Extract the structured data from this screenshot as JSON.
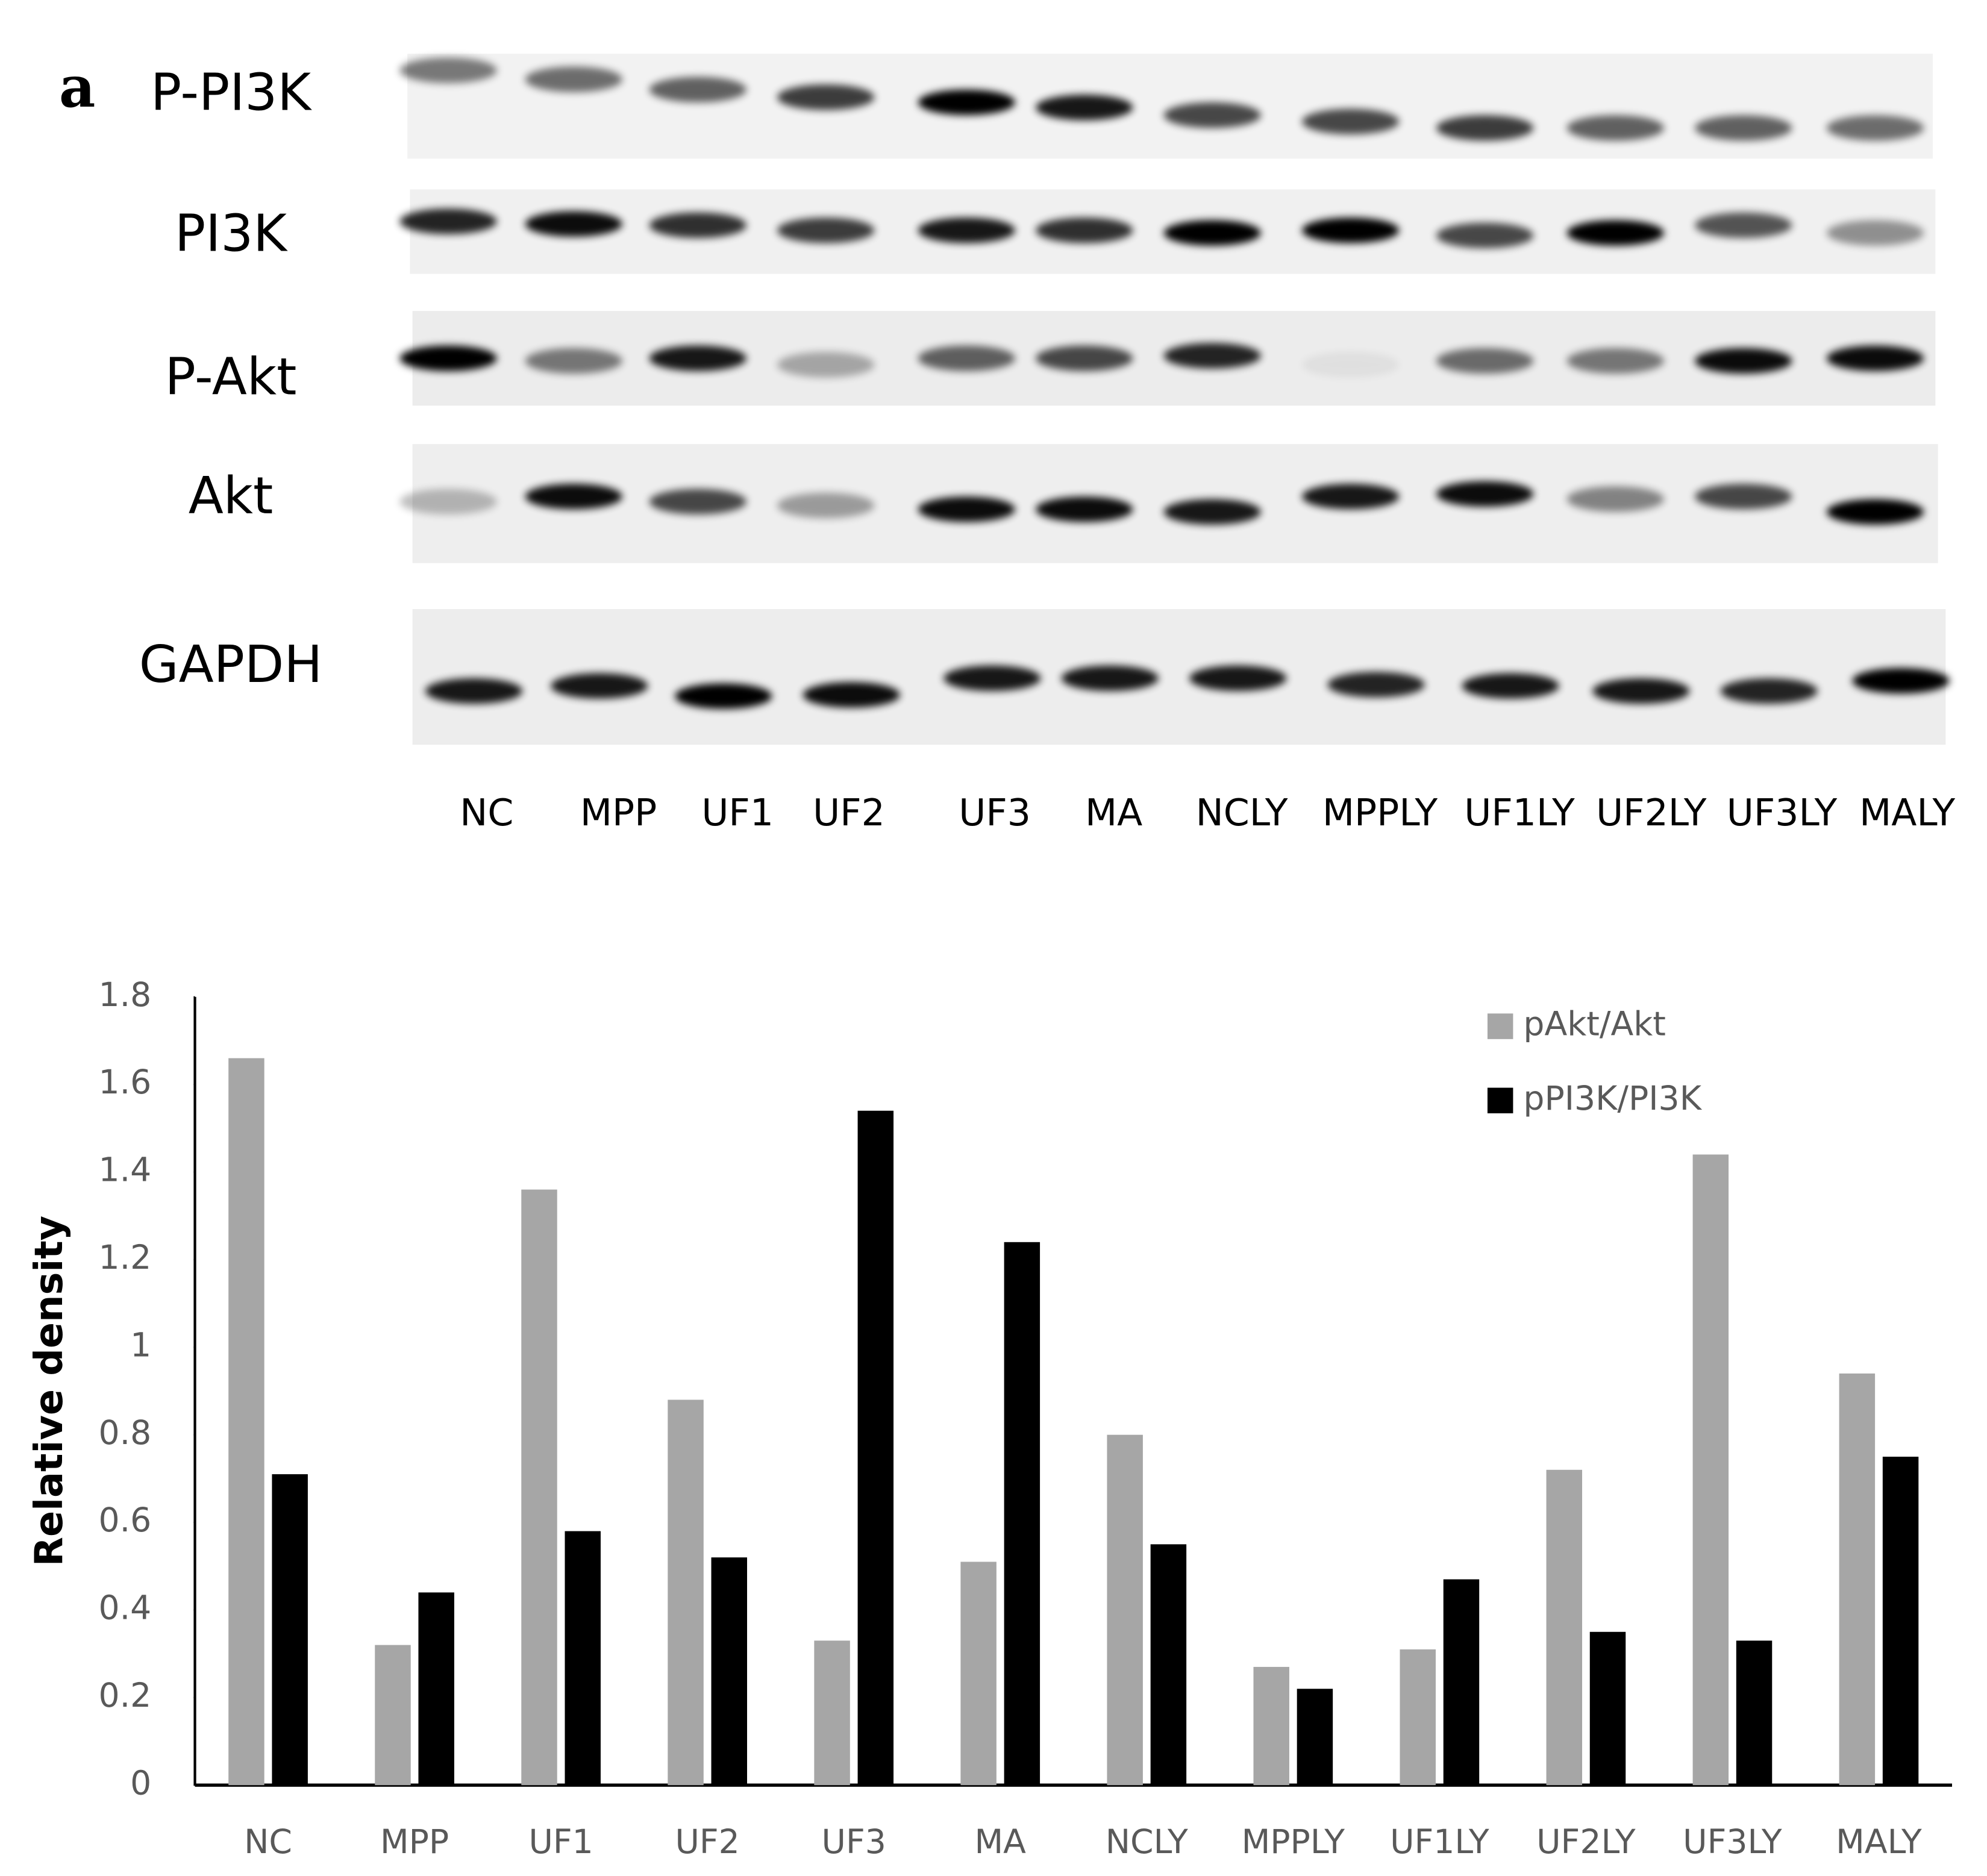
{
  "blot": {
    "panel_label": "a",
    "rows": [
      "P-PI3K",
      "PI3K",
      "P-Akt",
      "Akt",
      "GAPDH"
    ],
    "lanes": [
      "NC",
      "MPP",
      "UF1",
      "UF2",
      "UF3",
      "MA",
      "NCLY",
      "MPPLY",
      "UF1LY",
      "UF2LY",
      "UF3LY",
      "MALY"
    ]
  },
  "chart_data": {
    "type": "bar",
    "y_label": "Relative density",
    "categories": [
      "NC",
      "MPP",
      "UF1",
      "UF2",
      "UF3",
      "MA",
      "NCLY",
      "MPPLY",
      "UF1LY",
      "UF2LY",
      "UF3LY",
      "MALY"
    ],
    "series": [
      {
        "name": "pAkt/Akt",
        "color": "#a6a6a6",
        "values": [
          1.66,
          0.32,
          1.36,
          0.88,
          0.33,
          0.51,
          0.8,
          0.27,
          0.31,
          0.72,
          1.44,
          0.94
        ]
      },
      {
        "name": "pPI3K/PI3K",
        "color": "#000000",
        "values": [
          0.71,
          0.44,
          0.58,
          0.52,
          1.54,
          1.24,
          0.55,
          0.22,
          0.47,
          0.35,
          0.33,
          0.75
        ]
      }
    ],
    "ylim": [
      0,
      1.8
    ],
    "yticks": [
      0,
      0.2,
      0.4,
      0.6,
      0.8,
      1,
      1.2,
      1.4,
      1.6,
      1.8
    ],
    "grid": false,
    "legend": "top-right"
  }
}
